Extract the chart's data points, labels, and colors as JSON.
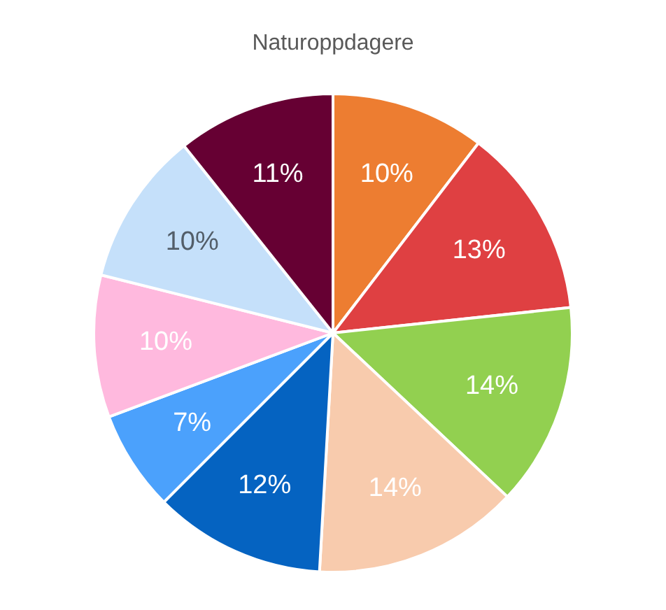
{
  "chart_data": {
    "type": "pie",
    "title": "Naturoppdagere",
    "categories": [
      null,
      null,
      null,
      null,
      null,
      null,
      null,
      null,
      null
    ],
    "values": [
      10.4,
      12.9,
      13.7,
      13.9,
      11.6,
      6.8,
      9.6,
      10.4,
      10.7
    ],
    "value_labels": [
      "10%",
      "13%",
      "14%",
      "14%",
      "12%",
      "7%",
      "10%",
      "10%",
      "11%"
    ],
    "colors": [
      "#ed7d31",
      "#df4042",
      "#92d050",
      "#f8cbad",
      "#0563c1",
      "#4ba1fc",
      "#ffb9de",
      "#c5e0fa",
      "#660033"
    ],
    "legend": false
  }
}
